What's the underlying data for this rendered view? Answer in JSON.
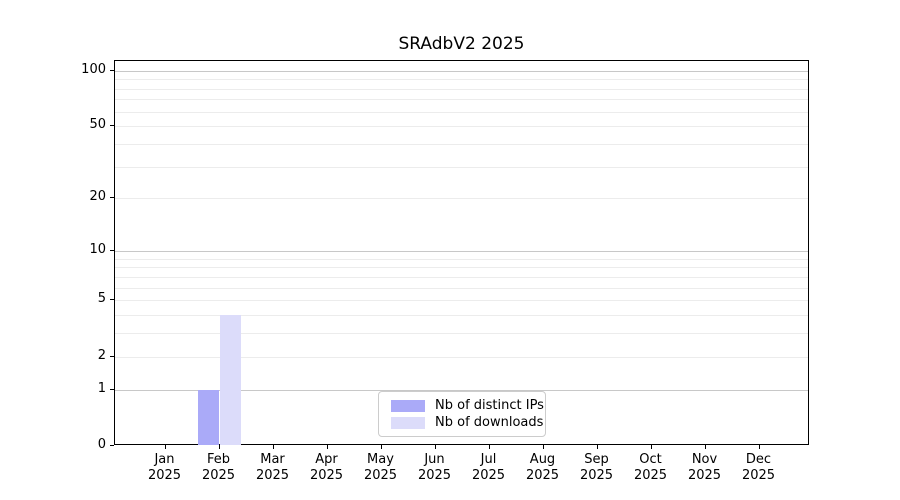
{
  "title": "SRAdbV2 2025",
  "chart_data": {
    "type": "bar",
    "title": "SRAdbV2 2025",
    "categories": [
      "Jan 2025",
      "Feb 2025",
      "Mar 2025",
      "Apr 2025",
      "May 2025",
      "Jun 2025",
      "Jul 2025",
      "Aug 2025",
      "Sep 2025",
      "Oct 2025",
      "Nov 2025",
      "Dec 2025"
    ],
    "series": [
      {
        "name": "Nb of distinct IPs",
        "color": "#aaaaf8",
        "values": [
          0,
          1,
          0,
          0,
          0,
          0,
          0,
          0,
          0,
          0,
          0,
          0
        ]
      },
      {
        "name": "Nb of downloads",
        "color": "#dcdcfa",
        "values": [
          0,
          4,
          0,
          0,
          0,
          0,
          0,
          0,
          0,
          0,
          0,
          0
        ]
      }
    ],
    "xlabel": "",
    "ylabel": "",
    "yscale": "log1p",
    "ytick_labels": [
      "0",
      "1",
      "2",
      "5",
      "10",
      "20",
      "50",
      "100"
    ],
    "ytick_values": [
      0,
      1,
      2,
      5,
      10,
      20,
      50,
      100
    ],
    "ylim": [
      0,
      113
    ],
    "grid": "horizontal",
    "legend_position": "lower-center inside"
  },
  "colors": {
    "spine": "#000000",
    "grid_major": "#c8c8c8",
    "grid_minor": "#ececec",
    "legend_border": "#cccccc"
  }
}
